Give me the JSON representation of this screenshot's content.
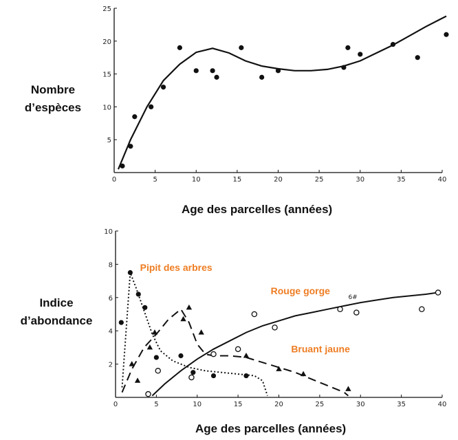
{
  "chart_data": [
    {
      "type": "scatter",
      "ylabel_lines": [
        "Nombre",
        "d’espèces"
      ],
      "xlabel": "Age des parcelles (années)",
      "xlim": [
        0,
        40
      ],
      "ylim": [
        0,
        25
      ],
      "xticks": [
        0,
        5,
        10,
        15,
        20,
        25,
        30,
        35,
        40
      ],
      "yticks": [
        5,
        10,
        15,
        20,
        25
      ],
      "grid": false,
      "series": [
        {
          "marker": "filled-circle",
          "points": [
            [
              1,
              1
            ],
            [
              2,
              4
            ],
            [
              2.5,
              8.5
            ],
            [
              4.5,
              10
            ],
            [
              6,
              13
            ],
            [
              8,
              19
            ],
            [
              10,
              15.5
            ],
            [
              12,
              15.5
            ],
            [
              12.5,
              14.5
            ],
            [
              15.5,
              19
            ],
            [
              18,
              14.5
            ],
            [
              20,
              15.5
            ],
            [
              28,
              16
            ],
            [
              28.5,
              19
            ],
            [
              30,
              18
            ],
            [
              34,
              19.5
            ],
            [
              37,
              17.5
            ],
            [
              40.5,
              21
            ]
          ]
        },
        {
          "style": "solid-curve",
          "x": [
            0.5,
            2,
            4,
            6,
            8,
            10,
            12,
            14,
            16,
            18,
            20,
            22,
            24,
            26,
            28,
            30,
            32,
            34,
            36,
            38,
            40.5
          ],
          "y": [
            0.5,
            5,
            10,
            14,
            16.5,
            18.3,
            18.9,
            18.2,
            17,
            16.2,
            15.8,
            15.5,
            15.5,
            15.7,
            16.2,
            17,
            18.2,
            19.4,
            20.8,
            22.2,
            23.8
          ]
        }
      ]
    },
    {
      "type": "line",
      "ylabel_lines": [
        "Indice",
        "d’abondance"
      ],
      "xlabel": "Age des parcelles (années)",
      "xlim": [
        0,
        40
      ],
      "ylim": [
        0,
        10
      ],
      "xticks": [
        0,
        5,
        10,
        15,
        20,
        25,
        30,
        35,
        40
      ],
      "ytick_labels": [
        "2",
        "4",
        "6",
        "8",
        "10"
      ],
      "yticks": [
        2,
        4,
        6,
        8,
        10
      ],
      "grid": false,
      "annotations": [
        {
          "text": "Pipit des arbres",
          "x": 3,
          "y": 7.6
        },
        {
          "text": "Rouge gorge",
          "x": 19,
          "y": 6.2
        },
        {
          "text": "Bruant jaune",
          "x": 21.5,
          "y": 2.7
        },
        {
          "text": "6#",
          "x": 28.5,
          "y": 5.9
        }
      ],
      "series": [
        {
          "name": "Pipit des arbres",
          "style": "dotted",
          "marker": "filled-circle",
          "line_x": [
            0.8,
            1.8,
            2.5,
            3.5,
            4.5,
            5.5,
            7,
            9,
            11,
            13,
            15,
            17,
            18,
            18.6
          ],
          "line_y": [
            0.6,
            7.5,
            6.6,
            5.2,
            3.8,
            2.8,
            2.2,
            1.8,
            1.6,
            1.5,
            1.4,
            1.3,
            1.0,
            0.1
          ],
          "points": [
            [
              0.7,
              4.5
            ],
            [
              1.8,
              7.5
            ],
            [
              2.8,
              6.2
            ],
            [
              3.6,
              5.4
            ],
            [
              5,
              2.4
            ],
            [
              8,
              2.5
            ],
            [
              9.5,
              1.5
            ],
            [
              12,
              1.3
            ],
            [
              16,
              1.3
            ]
          ]
        },
        {
          "name": "Bruant jaune",
          "style": "dashed",
          "marker": "filled-triangle",
          "line_x": [
            0.8,
            2,
            3.5,
            5,
            6.5,
            8,
            9,
            10,
            11,
            12,
            14,
            16,
            18,
            20,
            22,
            24,
            26,
            28,
            28.5
          ],
          "line_y": [
            0.3,
            1.7,
            3.0,
            3.8,
            4.7,
            5.3,
            4.5,
            3.2,
            2.6,
            2.5,
            2.5,
            2.4,
            2.1,
            1.8,
            1.5,
            1.1,
            0.7,
            0.3,
            0.1
          ],
          "points": [
            [
              2,
              2
            ],
            [
              2.7,
              1
            ],
            [
              4.2,
              3
            ],
            [
              4.8,
              3.9
            ],
            [
              8.3,
              4.7
            ],
            [
              9,
              5.4
            ],
            [
              10.5,
              3.9
            ],
            [
              16,
              2.5
            ],
            [
              20,
              1.7
            ],
            [
              23,
              1.4
            ],
            [
              28.5,
              0.5
            ]
          ]
        },
        {
          "name": "Rouge gorge",
          "style": "solid",
          "marker": "open-circle",
          "line_x": [
            4.5,
            6,
            8,
            10,
            12,
            14,
            16,
            18,
            20,
            22,
            24,
            26,
            28,
            30,
            32,
            34,
            36,
            38,
            39.5
          ],
          "line_y": [
            0.1,
            0.8,
            1.6,
            2.3,
            2.9,
            3.4,
            3.9,
            4.3,
            4.6,
            4.9,
            5.1,
            5.3,
            5.5,
            5.7,
            5.85,
            6.0,
            6.1,
            6.2,
            6.3
          ],
          "points": [
            [
              4,
              0.2
            ],
            [
              5.2,
              1.6
            ],
            [
              9.3,
              1.2
            ],
            [
              12,
              2.6
            ],
            [
              15,
              2.9
            ],
            [
              17,
              5
            ],
            [
              19.5,
              4.2
            ],
            [
              27.5,
              5.3
            ],
            [
              29.5,
              5.1
            ],
            [
              37.5,
              5.3
            ],
            [
              39.5,
              6.3
            ]
          ]
        }
      ]
    }
  ]
}
